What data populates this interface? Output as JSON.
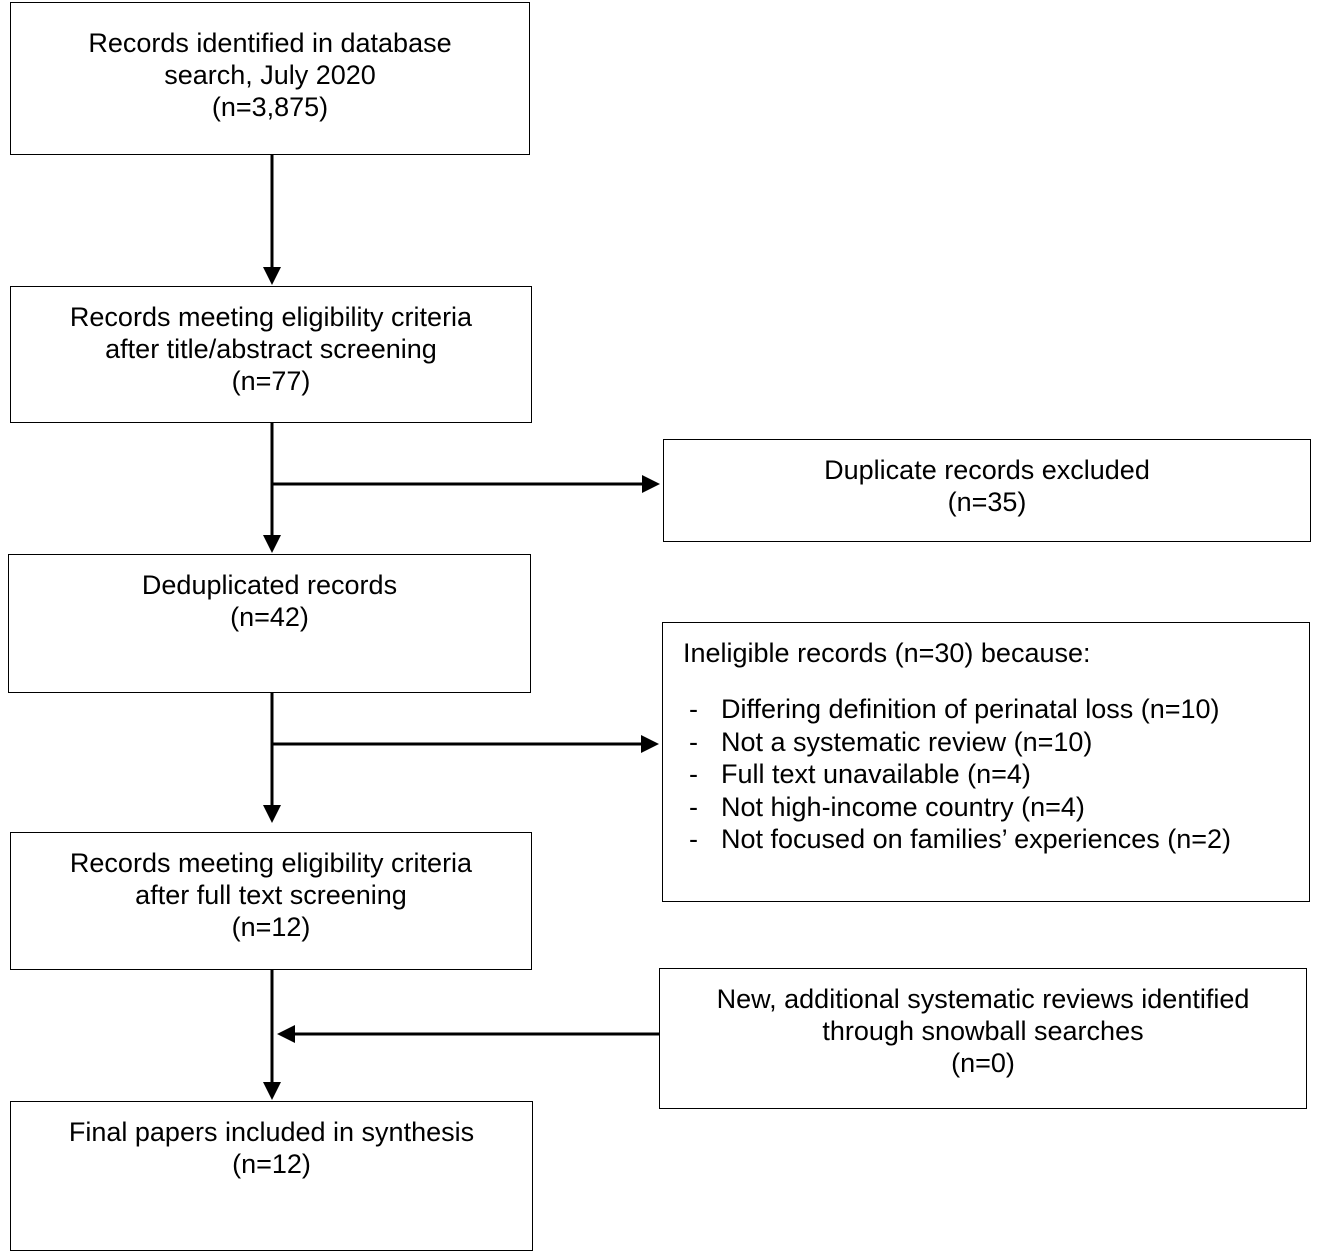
{
  "boxes": {
    "search": {
      "lines": [
        "Records identified in database",
        "search, July 2020",
        "(n=3,875)"
      ]
    },
    "screened": {
      "lines": [
        "Records meeting eligibility criteria",
        "after title/abstract screening",
        "(n=77)"
      ]
    },
    "duplicates": {
      "lines": [
        "Duplicate records excluded",
        "(n=35)"
      ]
    },
    "deduplicated": {
      "lines": [
        "Deduplicated records",
        "(n=42)"
      ]
    },
    "ineligible": {
      "heading": "Ineligible records (n=30) because:",
      "reasons": [
        "Differing definition of perinatal loss (n=10)",
        "Not a systematic review (n=10)",
        "Full text unavailable (n=4)",
        "Not high-income country (n=4)",
        "Not focused on families’ experiences (n=2)"
      ]
    },
    "fulltext": {
      "lines": [
        "Records meeting eligibility criteria",
        "after full text screening",
        "(n=12)"
      ]
    },
    "snowball": {
      "lines": [
        "New, additional systematic reviews identified",
        "through snowball searches",
        "(n=0)"
      ]
    },
    "final": {
      "lines": [
        "Final papers included in synthesis",
        "(n=12)"
      ]
    }
  }
}
